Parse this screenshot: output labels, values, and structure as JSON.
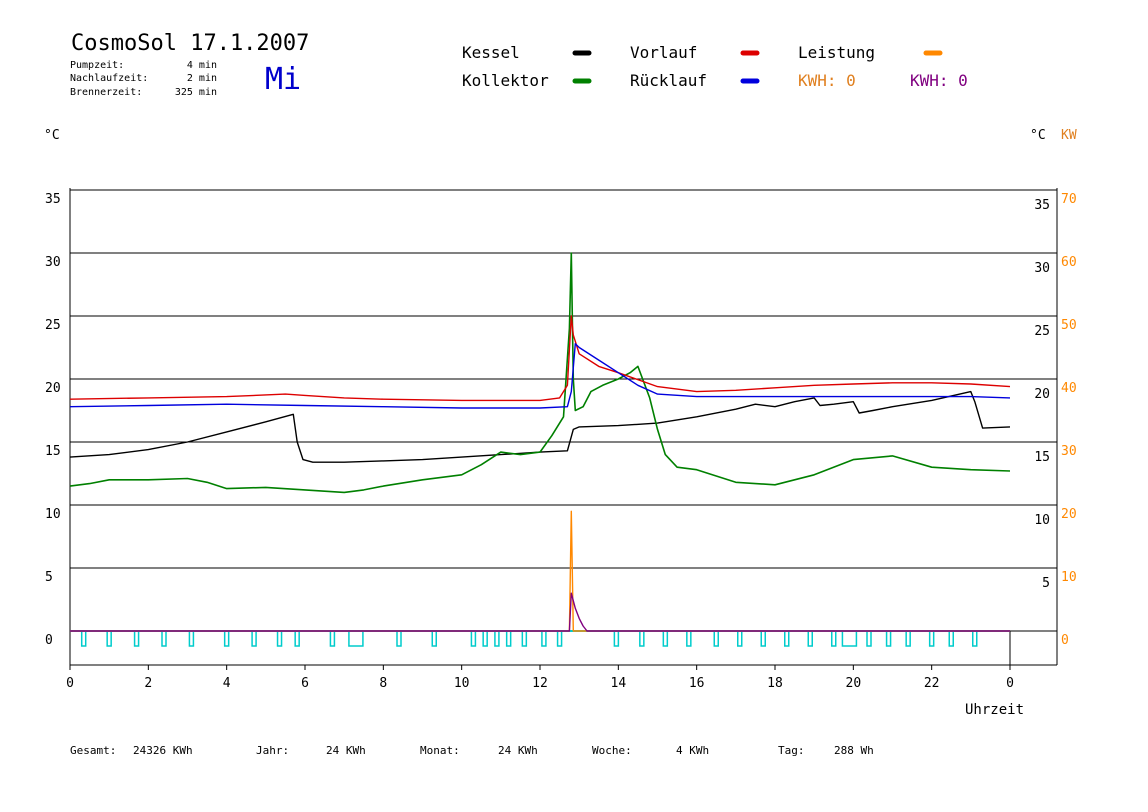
{
  "header": {
    "title": "CosmoSol 17.1.2007",
    "day": "Mi",
    "pump_label": "Pumpzeit:",
    "pump_value": "4 min",
    "post_label": "Nachlaufzeit:",
    "post_value": "2 min",
    "burner_label": "Brennerzeit:",
    "burner_value": "325 min"
  },
  "legend": {
    "kessel": "Kessel",
    "kollektor": "Kollektor",
    "vorlauf": "Vorlauf",
    "ruecklauf": "Rücklauf",
    "leistung": "Leistung",
    "kwh1": "KWH: 0",
    "kwh2": "KWH: 0"
  },
  "axis": {
    "left_unit": "°C",
    "right_unit_c": "°C",
    "right_unit_kw": "KW",
    "xlabel": "Uhrzeit"
  },
  "footer": {
    "gesamt_label": "Gesamt:",
    "gesamt_value": "24326 KWh",
    "jahr_label": "Jahr:",
    "jahr_value": "24 KWh",
    "monat_label": "Monat:",
    "monat_value": "24 KWh",
    "woche_label": "Woche:",
    "woche_value": "4 KWh",
    "tag_label": "Tag:",
    "tag_value": "288 Wh"
  },
  "colors": {
    "kessel": "#000000",
    "kollektor": "#008000",
    "vorlauf": "#dd0000",
    "ruecklauf": "#0000dd",
    "leistung": "#ff8800",
    "kwh2": "#800080",
    "pump": "#00cccc",
    "kw_axis": "#ff8800"
  },
  "chart_data": {
    "type": "line",
    "xlabel": "Uhrzeit",
    "xlim": [
      0,
      24
    ],
    "ylim": [
      0,
      35
    ],
    "ylim_kw": [
      0,
      70
    ],
    "x_ticks": [
      "0",
      "2",
      "4",
      "6",
      "8",
      "10",
      "12",
      "14",
      "16",
      "18",
      "20",
      "22",
      "0"
    ],
    "y_ticks_left": [
      "0",
      "5",
      "10",
      "15",
      "20",
      "25",
      "30",
      "35"
    ],
    "y_ticks_right_c": [
      "5",
      "10",
      "15",
      "20",
      "25",
      "30",
      "35"
    ],
    "y_ticks_right_kw": [
      "0",
      "10",
      "20",
      "30",
      "40",
      "50",
      "60",
      "70"
    ],
    "grid": true,
    "series": [
      {
        "name": "Kessel",
        "x": [
          0,
          1,
          2,
          3,
          4,
          5,
          5.7,
          5.8,
          5.95,
          6.2,
          7,
          8,
          9,
          10,
          11,
          12,
          12.7,
          12.85,
          13,
          14,
          15,
          16,
          17,
          17.5,
          18,
          18.5,
          19,
          19.15,
          19.5,
          20,
          20.15,
          20.5,
          21,
          22,
          23,
          23.1,
          23.3,
          24
        ],
        "y": [
          13.8,
          14.0,
          14.4,
          15.0,
          15.8,
          16.6,
          17.2,
          15.0,
          13.6,
          13.4,
          13.4,
          13.5,
          13.6,
          13.8,
          14.0,
          14.2,
          14.3,
          16.0,
          16.2,
          16.3,
          16.5,
          17.0,
          17.6,
          18.0,
          17.8,
          18.2,
          18.5,
          17.9,
          18.0,
          18.2,
          17.3,
          17.5,
          17.8,
          18.3,
          19.0,
          18.2,
          16.1,
          16.2
        ]
      },
      {
        "name": "Kollektor",
        "x": [
          0,
          0.5,
          1,
          2,
          3,
          3.5,
          4,
          5,
          6,
          7,
          7.5,
          8,
          9,
          10,
          10.5,
          11,
          11.5,
          12,
          12.3,
          12.6,
          12.75,
          12.8,
          12.85,
          12.9,
          13.1,
          13.3,
          13.6,
          14,
          14.3,
          14.5,
          14.8,
          15.0,
          15.2,
          15.5,
          16,
          16.3,
          17,
          18,
          19,
          20,
          21,
          22,
          23,
          24
        ],
        "y": [
          11.5,
          11.7,
          12.0,
          12.0,
          12.1,
          11.8,
          11.3,
          11.4,
          11.2,
          11.0,
          11.2,
          11.5,
          12.0,
          12.4,
          13.2,
          14.2,
          14.0,
          14.2,
          15.5,
          17.0,
          24.0,
          30.0,
          20.0,
          17.5,
          17.8,
          19.0,
          19.5,
          20.0,
          20.5,
          21.0,
          18.5,
          16.0,
          14.0,
          13.0,
          12.8,
          12.5,
          11.8,
          11.6,
          12.4,
          13.6,
          13.9,
          13.0,
          12.8,
          12.7
        ]
      },
      {
        "name": "Vorlauf",
        "x": [
          0,
          2,
          4,
          5.5,
          6,
          7,
          8,
          10,
          12,
          12.5,
          12.7,
          12.8,
          12.85,
          13,
          13.5,
          14,
          15,
          16,
          17,
          18,
          19,
          20,
          21,
          22,
          23,
          24
        ],
        "y": [
          18.4,
          18.5,
          18.6,
          18.8,
          18.7,
          18.5,
          18.4,
          18.3,
          18.3,
          18.5,
          19.5,
          25.0,
          23.5,
          22.0,
          21.0,
          20.5,
          19.4,
          19.0,
          19.1,
          19.3,
          19.5,
          19.6,
          19.7,
          19.7,
          19.6,
          19.4
        ]
      },
      {
        "name": "Rücklauf",
        "x": [
          0,
          2,
          4,
          6,
          8,
          10,
          12,
          12.7,
          12.8,
          12.9,
          13,
          13.5,
          14,
          14.5,
          15,
          16,
          17,
          18,
          19,
          20,
          21,
          22,
          23,
          24
        ],
        "y": [
          17.8,
          17.9,
          18.0,
          17.9,
          17.8,
          17.7,
          17.7,
          17.8,
          19.0,
          22.8,
          22.5,
          21.5,
          20.5,
          19.5,
          18.8,
          18.6,
          18.6,
          18.6,
          18.6,
          18.6,
          18.6,
          18.6,
          18.6,
          18.5
        ]
      },
      {
        "name": "Leistung",
        "x": [
          0,
          12.75,
          12.8,
          12.85,
          12.9,
          24
        ],
        "y": [
          0,
          0,
          9.5,
          0,
          0,
          0
        ]
      },
      {
        "name": "KWH",
        "x": [
          0,
          12.75,
          12.8,
          12.9,
          13.0,
          13.1,
          13.2,
          24
        ],
        "y": [
          0,
          0,
          3.0,
          1.8,
          1.0,
          0.4,
          0,
          0
        ]
      }
    ],
    "pump_pulses_x": [
      0.35,
      1.0,
      1.7,
      2.4,
      3.1,
      4.0,
      4.7,
      5.35,
      5.8,
      6.7,
      8.4,
      9.3,
      10.3,
      10.6,
      10.9,
      11.2,
      11.6,
      12.1,
      12.5,
      13.95,
      14.6,
      15.2,
      15.8,
      16.5,
      17.1,
      17.7,
      18.3,
      18.9,
      19.5,
      20.4,
      20.9,
      21.4,
      22.0,
      22.5,
      23.1
    ],
    "pump_pulses_wide_x": [
      7.3,
      19.9
    ]
  }
}
